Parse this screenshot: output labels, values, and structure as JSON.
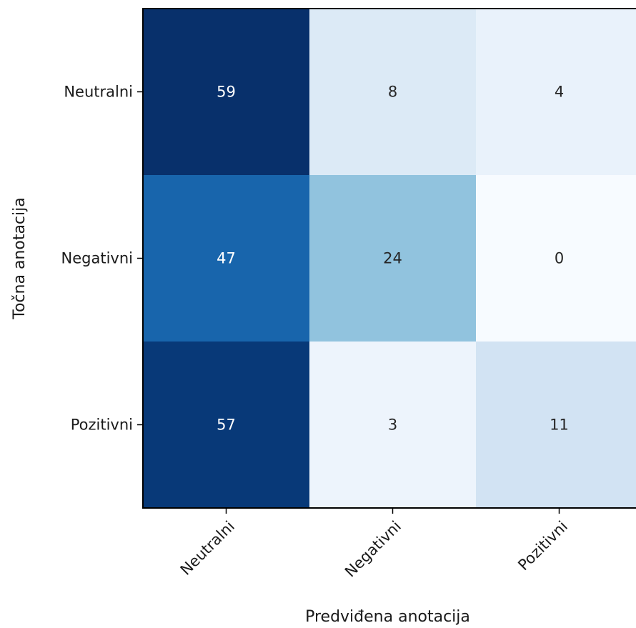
{
  "chart_data": {
    "type": "heatmap",
    "xlabel": "Predviđena anotacija",
    "ylabel": "Točna anotacija",
    "x_categories": [
      "Neutralni",
      "Negativni",
      "Pozitivni"
    ],
    "y_categories": [
      "Neutralni",
      "Negativni",
      "Pozitivni"
    ],
    "values": [
      [
        59,
        8,
        4
      ],
      [
        47,
        24,
        0
      ],
      [
        57,
        3,
        11
      ]
    ],
    "colormap": "Blues",
    "value_range": [
      0,
      59
    ],
    "grid": false,
    "colors": {
      "text_dark": "#262626",
      "text_light": "#ffffff",
      "axis": "#000000"
    }
  }
}
